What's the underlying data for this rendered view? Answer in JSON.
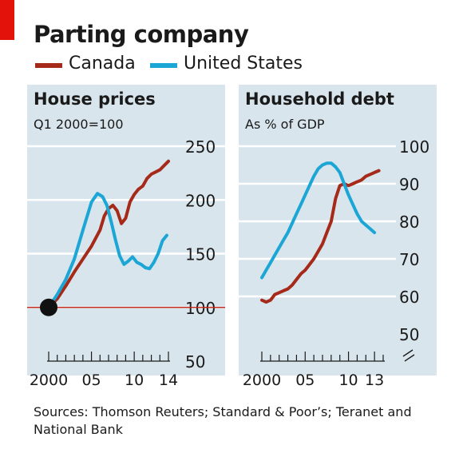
{
  "title": "Parting company",
  "legend": [
    {
      "label": "Canada",
      "color": "#a52a1a"
    },
    {
      "label": "United States",
      "color": "#1ba6d6"
    }
  ],
  "source": "Sources: Thomson Reuters; Standard & Poor’s; Teranet and National Bank",
  "colors": {
    "accent": "#e3120b",
    "panel_bg": "#d9e5ec",
    "baseline": "#c0281b",
    "marker": "#111111"
  },
  "chart_data": [
    {
      "type": "line",
      "title": "House prices",
      "subtitle": "Q1 2000=100",
      "xlim": [
        2000,
        2014
      ],
      "ylim": [
        50,
        250
      ],
      "yticks": [
        50,
        100,
        150,
        200,
        250
      ],
      "xtick_labels": [
        {
          "x": 2000,
          "label": "2000"
        },
        {
          "x": 2005,
          "label": "05"
        },
        {
          "x": 2010,
          "label": "10"
        },
        {
          "x": 2014,
          "label": "14"
        }
      ],
      "baseline": 100,
      "start_marker": {
        "x": 2000,
        "y": 100
      },
      "series": [
        {
          "name": "Canada",
          "color": "#a52a1a",
          "x": [
            2000,
            2001,
            2002,
            2003,
            2004,
            2005,
            2006,
            2006.5,
            2007,
            2007.5,
            2008,
            2008.5,
            2009,
            2009.5,
            2010,
            2010.5,
            2011,
            2011.5,
            2012,
            2012.5,
            2013,
            2013.5,
            2014
          ],
          "y": [
            100,
            108,
            120,
            133,
            145,
            157,
            172,
            185,
            192,
            195,
            190,
            178,
            183,
            198,
            205,
            210,
            213,
            220,
            224,
            226,
            228,
            232,
            236
          ]
        },
        {
          "name": "United States",
          "color": "#1ba6d6",
          "x": [
            2000,
            2001,
            2002,
            2003,
            2004,
            2005,
            2005.7,
            2006.3,
            2006.8,
            2007.3,
            2007.8,
            2008.3,
            2008.8,
            2009.3,
            2009.8,
            2010.3,
            2010.8,
            2011.3,
            2011.8,
            2012.3,
            2012.8,
            2013.3,
            2013.8
          ],
          "y": [
            100,
            112,
            126,
            145,
            172,
            198,
            206,
            203,
            195,
            180,
            163,
            148,
            140,
            143,
            147,
            142,
            140,
            137,
            136,
            142,
            150,
            162,
            167
          ]
        }
      ]
    },
    {
      "type": "line",
      "title": "Household debt",
      "subtitle": "As % of GDP",
      "xlim": [
        2000,
        2014
      ],
      "ylim": [
        50,
        100
      ],
      "yticks": [
        50,
        60,
        70,
        80,
        90,
        100
      ],
      "xtick_labels": [
        {
          "x": 2000,
          "label": "2000"
        },
        {
          "x": 2005,
          "label": "05"
        },
        {
          "x": 2010,
          "label": "10"
        },
        {
          "x": 2013,
          "label": "13"
        }
      ],
      "series": [
        {
          "name": "Canada",
          "color": "#a52a1a",
          "x": [
            2000,
            2000.5,
            2001,
            2001.5,
            2002,
            2002.5,
            2003,
            2003.5,
            2004,
            2004.5,
            2005,
            2005.5,
            2006,
            2006.5,
            2007,
            2007.5,
            2008,
            2008.5,
            2009,
            2009.5,
            2010,
            2010.5,
            2011,
            2011.5,
            2012,
            2012.5,
            2013,
            2013.5
          ],
          "y": [
            59,
            58.5,
            59,
            60.5,
            61,
            61.5,
            62,
            63,
            64.5,
            66,
            67,
            68.5,
            70,
            72,
            74,
            77,
            80,
            86,
            89.5,
            90,
            89.5,
            90,
            90.5,
            91,
            92,
            92.5,
            93,
            93.5
          ]
        },
        {
          "name": "United States",
          "color": "#1ba6d6",
          "x": [
            2000,
            2000.5,
            2001,
            2001.5,
            2002,
            2002.5,
            2003,
            2003.5,
            2004,
            2004.5,
            2005,
            2005.5,
            2006,
            2006.5,
            2007,
            2007.5,
            2008,
            2008.5,
            2009,
            2009.5,
            2010,
            2010.5,
            2011,
            2011.5,
            2012,
            2012.5,
            2013
          ],
          "y": [
            65,
            67,
            69,
            71,
            73,
            75,
            77,
            79.5,
            82,
            84.5,
            87,
            89.5,
            92,
            94,
            95,
            95.5,
            95.5,
            94.5,
            93,
            90,
            87,
            84.5,
            82,
            80,
            79,
            78,
            77
          ]
        }
      ]
    }
  ]
}
